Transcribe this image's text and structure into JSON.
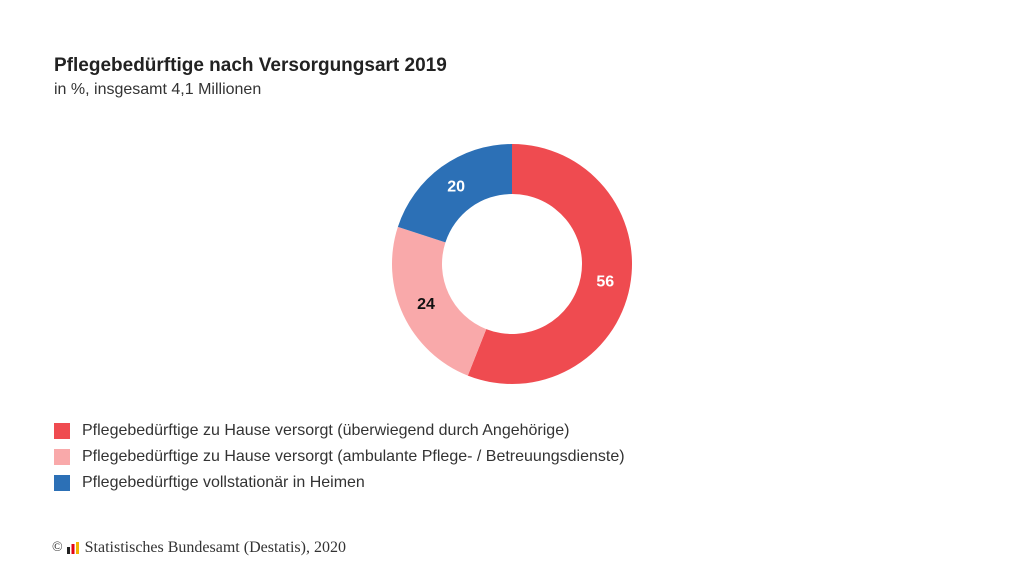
{
  "chart_data": {
    "type": "pie",
    "style": "donut",
    "title": "Pflegebedürftige nach Versorgungsart 2019",
    "subtitle": "in %, insgesamt 4,1 Millionen",
    "slices": [
      {
        "label": "Pflegebedürftige zu Hause versorgt (überwiegend durch Angehörige)",
        "value": 56,
        "color": "#ef4b50",
        "value_label_color": "#ffffff"
      },
      {
        "label": "Pflegebedürftige zu Hause versorgt (ambulante Pflege- / Betreuungsdienste)",
        "value": 24,
        "color": "#f9a9aa",
        "value_label_color": "#111111"
      },
      {
        "label": "Pflegebedürftige vollstationär in Heimen",
        "value": 20,
        "color": "#2c70b6",
        "value_label_color": "#ffffff"
      }
    ],
    "legend_position": "bottom-left"
  },
  "footer": {
    "copyright_symbol": "©",
    "logo_icon": "destatis-logo-icon",
    "source_text": "Statistisches Bundesamt (Destatis), 2020"
  }
}
